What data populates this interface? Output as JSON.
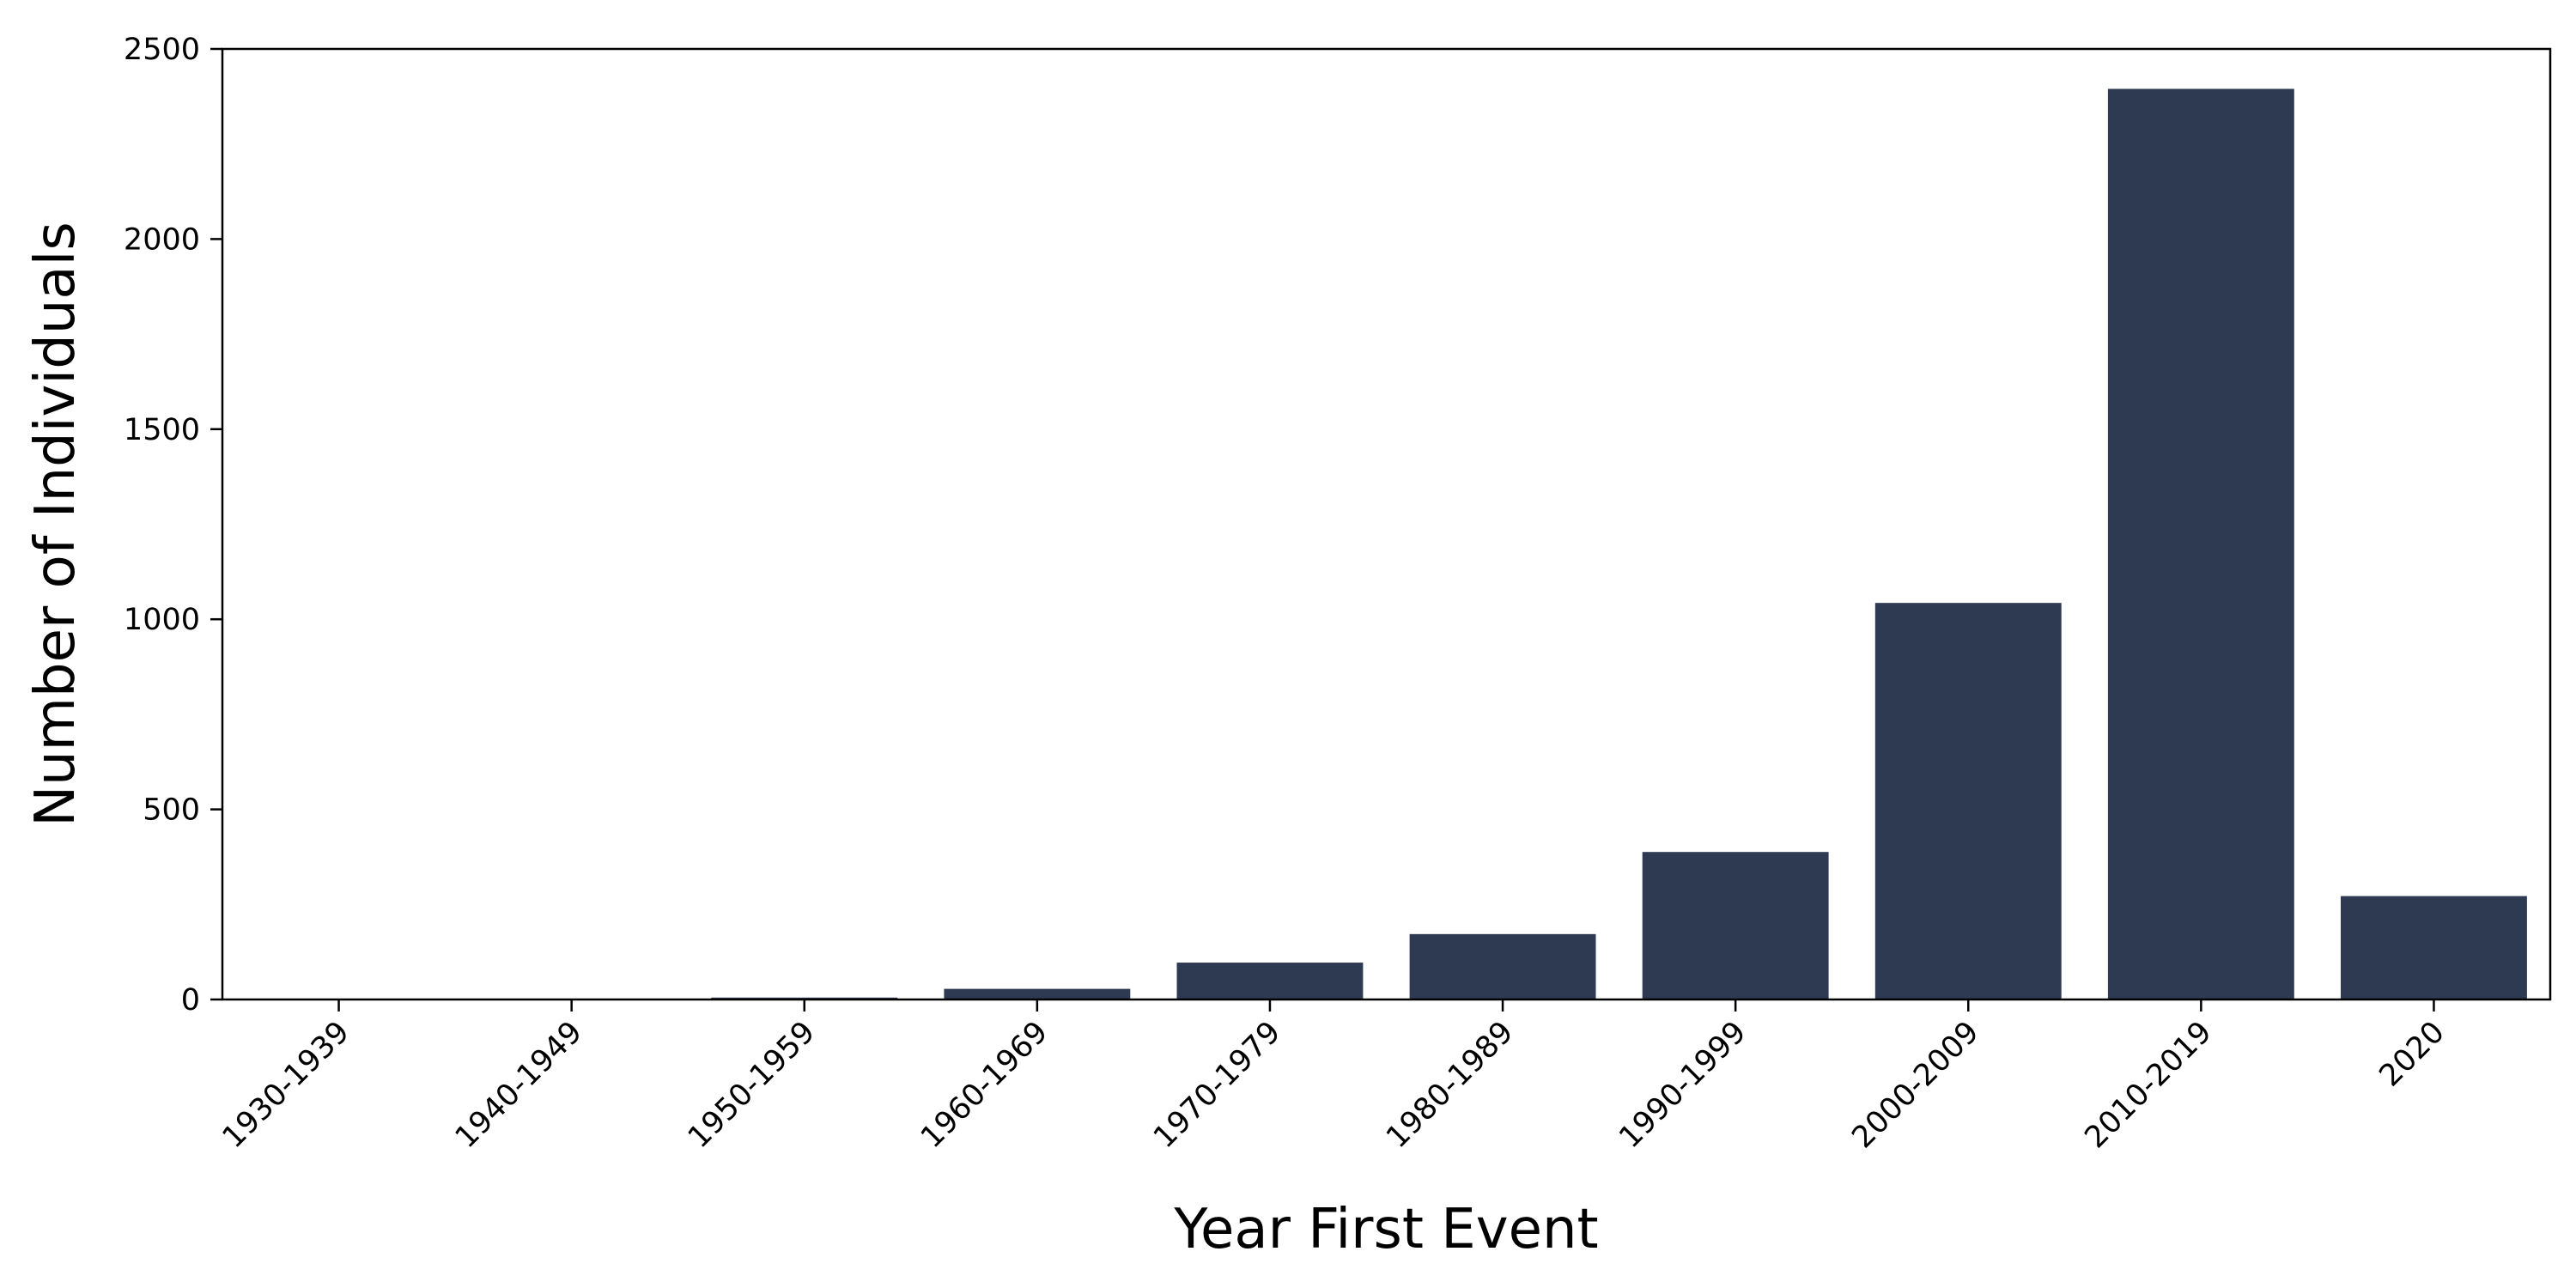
{
  "chart_data": {
    "type": "bar",
    "title": "",
    "xlabel": "Year First Event",
    "ylabel": "Number of Individuals",
    "categories": [
      "1930-1939",
      "1940-1949",
      "1950-1959",
      "1960-1969",
      "1970-1979",
      "1980-1989",
      "1990-1999",
      "2000-2009",
      "2010-2019",
      "2020"
    ],
    "values": [
      1,
      1,
      5,
      28,
      97,
      172,
      388,
      1043,
      2395,
      272
    ],
    "ylim": [
      0,
      2500
    ],
    "yticks": [
      0,
      500,
      1000,
      1500,
      2000,
      2500
    ],
    "grid": false,
    "bar_color": "#2d3a52"
  }
}
